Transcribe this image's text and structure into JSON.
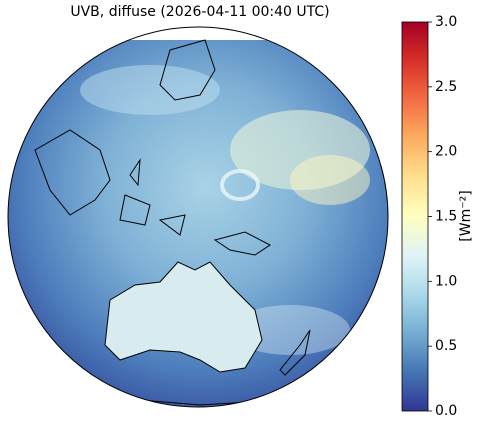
{
  "chart_data": {
    "type": "map",
    "title": "UVB, diffuse (2026-04-11 00:40 UTC)",
    "colorbar": {
      "label": "[Wm⁻²]",
      "lim": [
        0,
        3
      ],
      "ticks": [
        {
          "value": 0,
          "label": "0.0"
        },
        0.5,
        {
          "value": 1,
          "label": "1.0"
        },
        1.5,
        {
          "value": 2,
          "label": "2.0"
        },
        2.5,
        {
          "value": 3,
          "label": "3.0"
        }
      ],
      "colors": [
        "#313695",
        "#4575b4",
        "#74add1",
        "#abd9e9",
        "#e0f3f8",
        "#ffffbf",
        "#fee090",
        "#fdae61",
        "#f46d43",
        "#d73027",
        "#a50026"
      ]
    }
  }
}
